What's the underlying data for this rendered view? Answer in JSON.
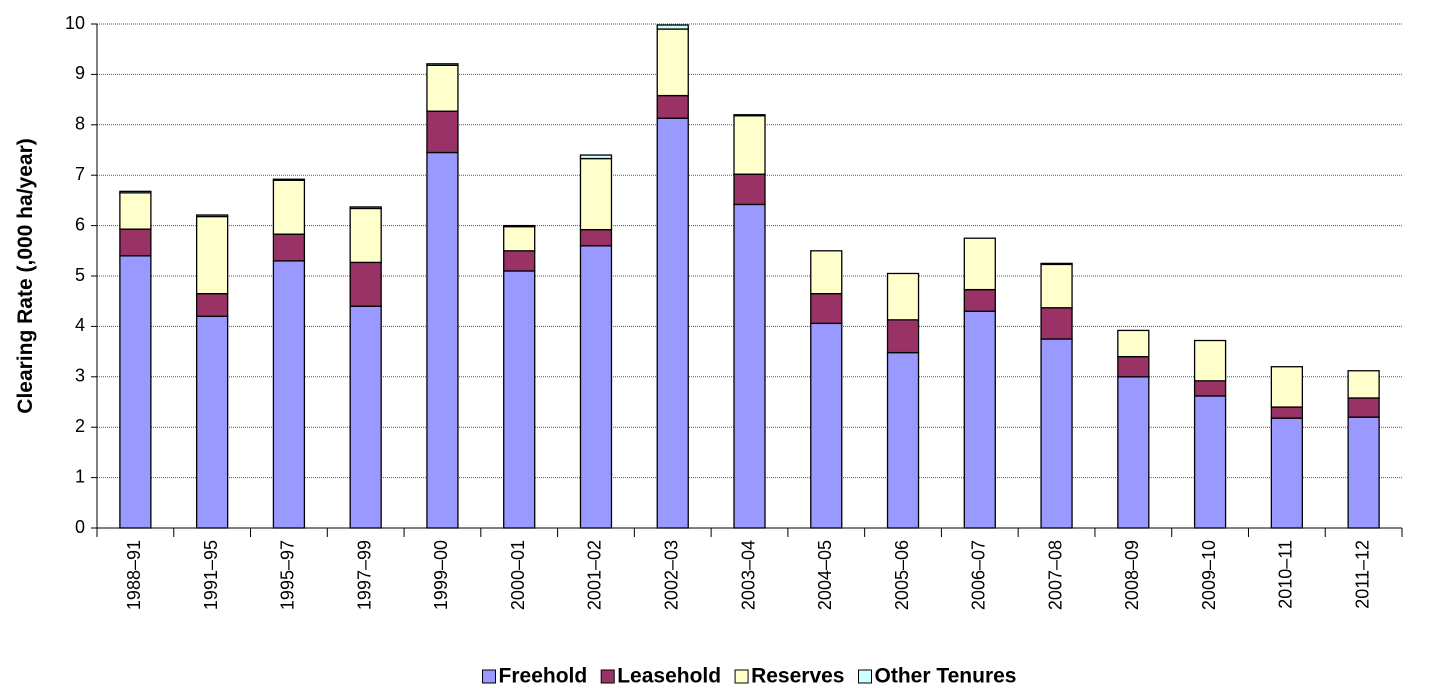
{
  "chart_data": {
    "type": "stacked-bar",
    "y_label": "Clearing Rate (,000 ha/year)",
    "categories": [
      "1988–91",
      "1991–95",
      "1995–97",
      "1997–99",
      "1999–00",
      "2000–01",
      "2001–02",
      "2002–03",
      "2003–04",
      "2004–05",
      "2005–06",
      "2006–07",
      "2007–08",
      "2008–09",
      "2009–10",
      "2010–11",
      "2011–12"
    ],
    "series": [
      {
        "name": "Freehold",
        "color": "#9999ff",
        "values": [
          5.4,
          4.2,
          5.3,
          4.4,
          7.45,
          5.1,
          5.6,
          8.13,
          6.42,
          4.06,
          3.48,
          4.3,
          3.75,
          3.0,
          2.62,
          2.18,
          2.2
        ]
      },
      {
        "name": "Leasehold",
        "color": "#993366",
        "values": [
          0.53,
          0.45,
          0.53,
          0.87,
          0.82,
          0.4,
          0.32,
          0.45,
          0.6,
          0.59,
          0.65,
          0.43,
          0.62,
          0.4,
          0.3,
          0.22,
          0.38
        ]
      },
      {
        "name": "Reserves",
        "color": "#ffffcc",
        "values": [
          0.72,
          1.53,
          1.07,
          1.07,
          0.91,
          0.48,
          1.41,
          1.32,
          1.16,
          0.85,
          0.92,
          1.02,
          0.86,
          0.52,
          0.8,
          0.8,
          0.54
        ]
      },
      {
        "name": "Other Tenures",
        "color": "#ccffff",
        "values": [
          0.03,
          0.03,
          0.02,
          0.03,
          0.03,
          0.02,
          0.07,
          0.08,
          0.02,
          0,
          0,
          0,
          0.02,
          0,
          0,
          0,
          0
        ]
      }
    ],
    "ylim": [
      0,
      10
    ],
    "yticks": [
      0,
      1,
      2,
      3,
      4,
      5,
      6,
      7,
      8,
      9,
      10
    ],
    "grid": true,
    "legend": "bottom"
  }
}
